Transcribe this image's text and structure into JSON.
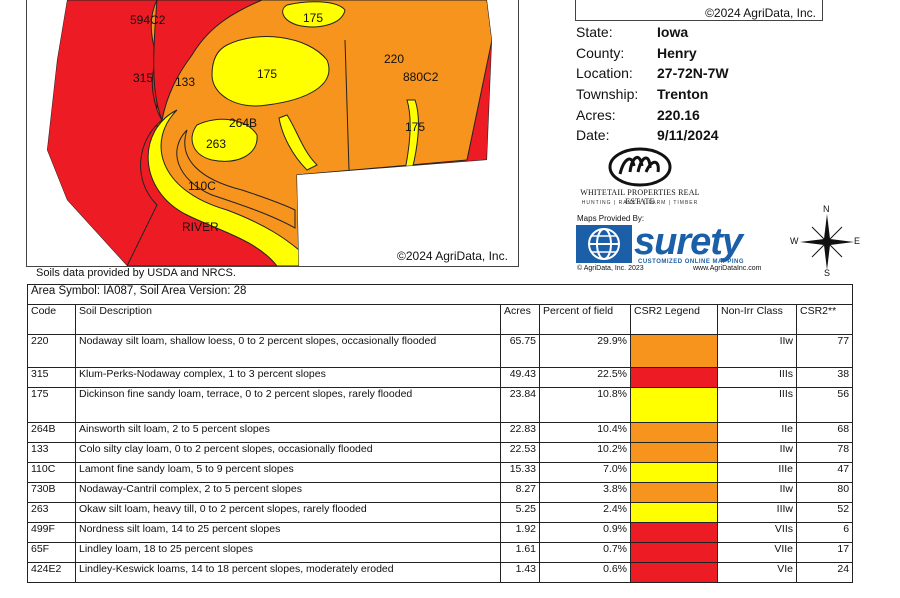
{
  "map": {
    "labels": {
      "a": "594C2",
      "b": "315",
      "c": "133",
      "d": "175",
      "e": "175",
      "f": "220",
      "g": "880C2",
      "h": "175",
      "i": "264B",
      "j": "263",
      "k": "110C",
      "l": "RIVER"
    },
    "credit": "©2024 AgriData, Inc.",
    "soils_note": "Soils data provided by USDA and NRCS."
  },
  "legend": {
    "credit": "©2024 AgriData, Inc."
  },
  "info": [
    {
      "label": "State:",
      "value": "Iowa"
    },
    {
      "label": "County:",
      "value": "Henry"
    },
    {
      "label": "Location:",
      "value": "27-72N-7W"
    },
    {
      "label": "Township:",
      "value": "Trenton"
    },
    {
      "label": "Acres:",
      "value": "220.16"
    },
    {
      "label": "Date:",
      "value": "9/11/2024"
    }
  ],
  "logos": {
    "wp_name": "WHITETAIL PROPERTIES REAL ESTATE",
    "wp_tagline": "HUNTING | RANCH | FARM | TIMBER",
    "maps_provided": "Maps Provided By:",
    "surety": "surety",
    "surety_sub": "CUSTOMIZED ONLINE MAPPING",
    "agri_copyright": "© AgriData, Inc. 2023",
    "agri_url": "www.AgriDataInc.com"
  },
  "compass": {
    "n": "N",
    "s": "S",
    "e": "E",
    "w": "W"
  },
  "table": {
    "area": "Area Symbol: IA087, Soil Area Version: 28",
    "headers": {
      "code": "Code",
      "desc": "Soil Description",
      "acres": "Acres",
      "pct": "Percent of field",
      "legend": "CSR2 Legend",
      "cls": "Non-Irr Class",
      "csr": "CSR2**"
    },
    "rows": [
      {
        "code": "220",
        "desc": "Nodaway silt loam, shallow loess, 0 to 2 percent slopes, occasionally flooded",
        "acres": "65.75",
        "pct": "29.9%",
        "color": "#f7941d",
        "cls": "IIw",
        "csr": "77"
      },
      {
        "code": "315",
        "desc": "Klum-Perks-Nodaway complex, 1 to 3 percent slopes",
        "acres": "49.43",
        "pct": "22.5%",
        "color": "#ed1c24",
        "cls": "IIIs",
        "csr": "38"
      },
      {
        "code": "175",
        "desc": "Dickinson fine sandy loam, terrace, 0 to 2 percent slopes, rarely flooded",
        "acres": "23.84",
        "pct": "10.8%",
        "color": "#ffff00",
        "cls": "IIIs",
        "csr": "56"
      },
      {
        "code": "264B",
        "desc": "Ainsworth silt loam, 2 to 5 percent slopes",
        "acres": "22.83",
        "pct": "10.4%",
        "color": "#f7941d",
        "cls": "IIe",
        "csr": "68"
      },
      {
        "code": "133",
        "desc": "Colo silty clay loam, 0 to 2 percent slopes, occasionally flooded",
        "acres": "22.53",
        "pct": "10.2%",
        "color": "#f7941d",
        "cls": "IIw",
        "csr": "78"
      },
      {
        "code": "110C",
        "desc": "Lamont fine sandy loam, 5 to 9 percent slopes",
        "acres": "15.33",
        "pct": "7.0%",
        "color": "#ffff00",
        "cls": "IIIe",
        "csr": "47"
      },
      {
        "code": "730B",
        "desc": "Nodaway-Cantril complex, 2 to 5 percent slopes",
        "acres": "8.27",
        "pct": "3.8%",
        "color": "#f7941d",
        "cls": "IIw",
        "csr": "80"
      },
      {
        "code": "263",
        "desc": "Okaw silt loam, heavy till, 0 to 2 percent slopes, rarely flooded",
        "acres": "5.25",
        "pct": "2.4%",
        "color": "#ffff00",
        "cls": "IIIw",
        "csr": "52"
      },
      {
        "code": "499F",
        "desc": "Nordness silt loam, 14 to 25 percent slopes",
        "acres": "1.92",
        "pct": "0.9%",
        "color": "#ed1c24",
        "cls": "VIIs",
        "csr": "6"
      },
      {
        "code": "65F",
        "desc": "Lindley loam, 18 to 25 percent slopes",
        "acres": "1.61",
        "pct": "0.7%",
        "color": "#ed1c24",
        "cls": "VIIe",
        "csr": "17"
      },
      {
        "code": "424E2",
        "desc": "Lindley-Keswick loams, 14 to 18 percent slopes, moderately eroded",
        "acres": "1.43",
        "pct": "0.6%",
        "color": "#ed1c24",
        "cls": "VIe",
        "csr": "24"
      }
    ]
  }
}
